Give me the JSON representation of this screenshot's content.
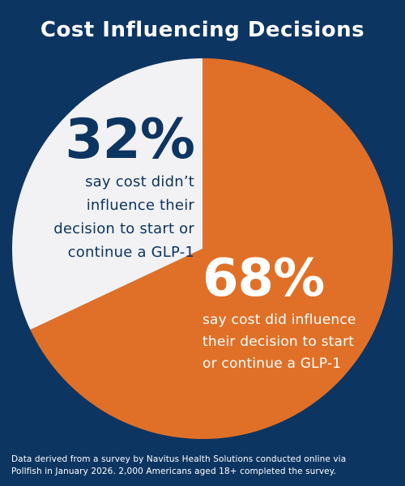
{
  "title": "Cost Influencing Decisions",
  "chart_data": {
    "type": "pie",
    "title": "Cost Influencing Decisions",
    "slices": [
      {
        "label": "say cost did influence their decision to start or continue a GLP-1",
        "value": 68,
        "display": "68%",
        "color": "#e07027"
      },
      {
        "label": "say cost didn’t influence their decision to start or continue a GLP-1",
        "value": 32,
        "display": "32%",
        "color": "#f2f2f4"
      }
    ]
  },
  "labels": {
    "small": {
      "pct": "32%",
      "lines": [
        "say cost didn’t",
        "influence their",
        "decision to start or",
        "continue a GLP-1"
      ]
    },
    "large": {
      "pct": "68%",
      "lines": [
        "say cost did influence",
        "their decision to start",
        "or continue a GLP-1"
      ]
    }
  },
  "footnote": {
    "line1": "Data derived from a survey by Navitus Health Solutions conducted online via",
    "line2": "Pollfish in January 2026. 2,000 Americans aged 18+ completed the survey."
  },
  "colors": {
    "background": "#0d3562",
    "accent": "#e07027",
    "light": "#f2f2f4"
  }
}
